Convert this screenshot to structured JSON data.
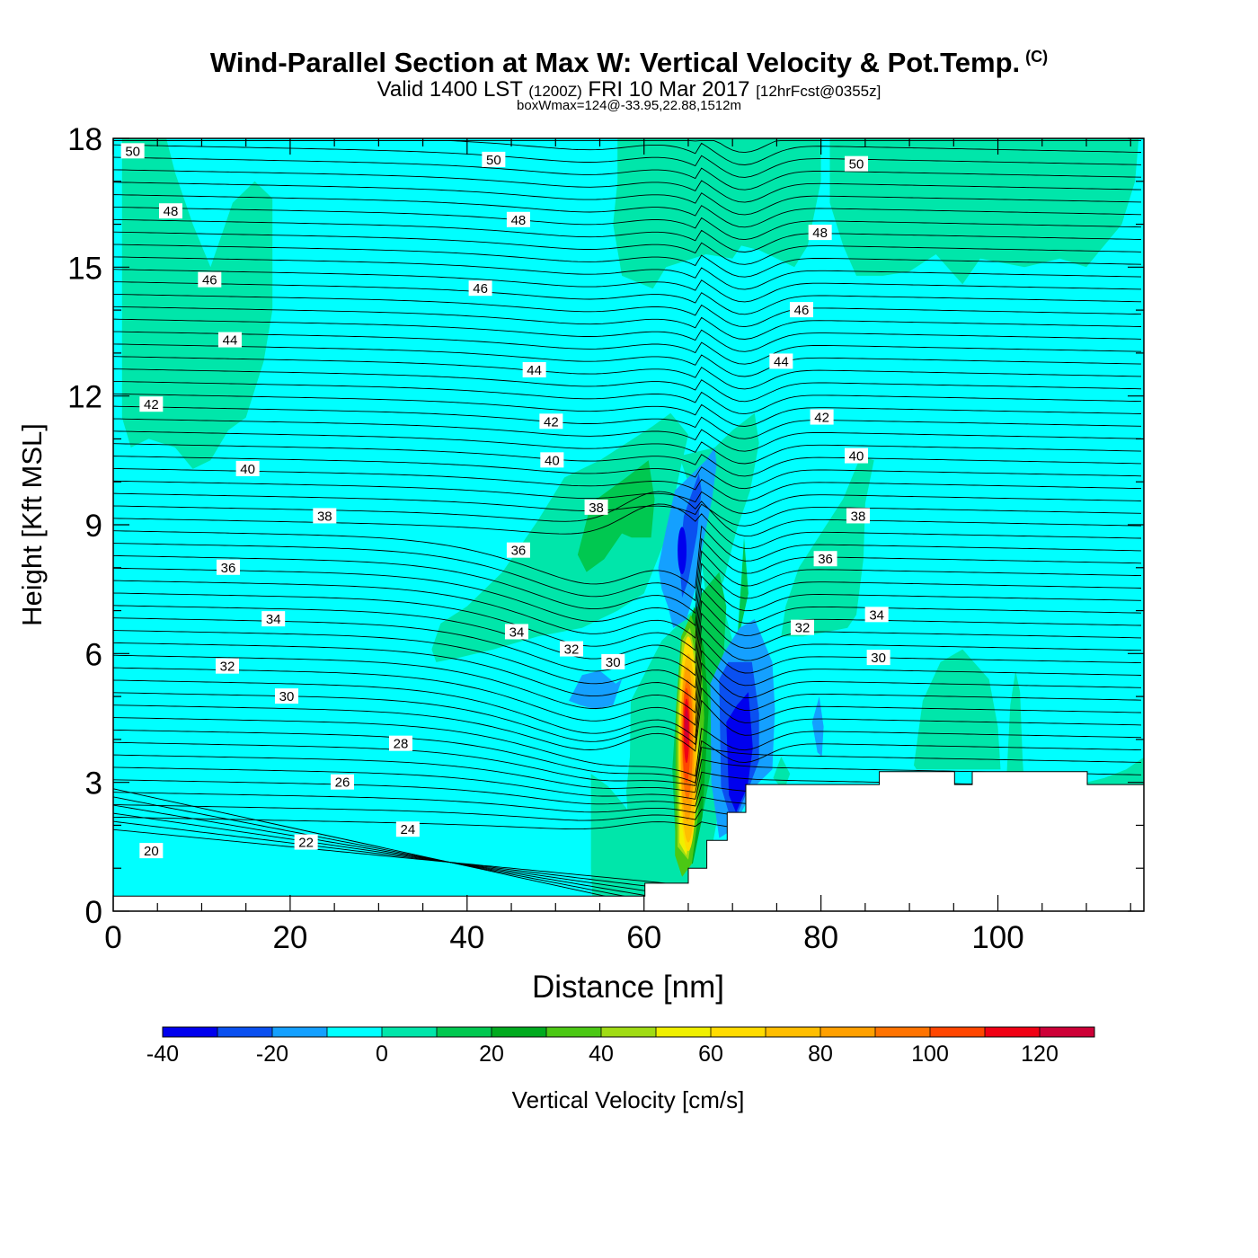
{
  "header": {
    "title": "Wind-Parallel Section at Max W: Vertical Velocity & Pot.Temp.",
    "copyright": "(C)",
    "subtitle_valid": "Valid 1400 LST",
    "subtitle_utc": "(1200Z)",
    "subtitle_date": "FRI 10 Mar 2017",
    "subtitle_fcst": "[12hrFcst@0355z]",
    "boxwmax": "boxWmax=124@-33.95,22.88,1512m"
  },
  "chart_data": {
    "type": "heatmap",
    "title": "Wind-Parallel Section at Max W: Vertical Velocity & Pot.Temp.",
    "xlabel": "Distance [nm]",
    "ylabel": "Height [Kft MSL]",
    "xlim": [
      0,
      116.5
    ],
    "ylim": [
      0,
      18
    ],
    "x_ticks": [
      0,
      20,
      40,
      60,
      80,
      100
    ],
    "y_ticks": [
      0,
      3,
      6,
      9,
      12,
      15,
      18
    ],
    "colorbar": {
      "label": "Vertical Velocity [cm/s]",
      "levels": [
        -40,
        -30,
        -20,
        -10,
        0,
        10,
        20,
        30,
        40,
        50,
        60,
        70,
        80,
        90,
        100,
        110,
        120,
        130
      ],
      "tick_labels": [
        "-40",
        "-20",
        "0",
        "20",
        "40",
        "60",
        "80",
        "100",
        "120"
      ],
      "colors": [
        "#0000ee",
        "#0a50f0",
        "#14a0ff",
        "#00ffff",
        "#00e6aa",
        "#00c850",
        "#00aa1e",
        "#4bc814",
        "#a0dc14",
        "#f0f000",
        "#ffdc00",
        "#ffbe00",
        "#ffa000",
        "#ff7300",
        "#ff4600",
        "#f00014",
        "#cd0037"
      ]
    },
    "w_features": [
      {
        "type": "updraft_max",
        "x": 65,
        "y": 4.0,
        "value": 124
      },
      {
        "type": "downdraft",
        "x": 64.5,
        "y": 8.4,
        "value": -40
      },
      {
        "type": "downdraft",
        "x": 71.5,
        "y": 3.8,
        "value": -40
      }
    ],
    "theta_contours": {
      "label_values": [
        20,
        22,
        24,
        26,
        28,
        30,
        32,
        34,
        36,
        38,
        40,
        42,
        44,
        46,
        48,
        50
      ],
      "interval": 1,
      "labels": [
        {
          "v": "50",
          "x": 2.2,
          "y": 17.7
        },
        {
          "v": "50",
          "x": 43,
          "y": 17.5
        },
        {
          "v": "50",
          "x": 84,
          "y": 17.4
        },
        {
          "v": "48",
          "x": 6.5,
          "y": 16.3
        },
        {
          "v": "48",
          "x": 45.8,
          "y": 16.1
        },
        {
          "v": "48",
          "x": 79.9,
          "y": 15.8
        },
        {
          "v": "46",
          "x": 10.9,
          "y": 14.7
        },
        {
          "v": "46",
          "x": 41.5,
          "y": 14.5
        },
        {
          "v": "46",
          "x": 77.8,
          "y": 14.0
        },
        {
          "v": "44",
          "x": 13.2,
          "y": 13.3
        },
        {
          "v": "44",
          "x": 47.6,
          "y": 12.6
        },
        {
          "v": "44",
          "x": 75.5,
          "y": 12.8
        },
        {
          "v": "42",
          "x": 4.3,
          "y": 11.8
        },
        {
          "v": "42",
          "x": 49.5,
          "y": 11.4
        },
        {
          "v": "42",
          "x": 80.1,
          "y": 11.5
        },
        {
          "v": "40",
          "x": 15.2,
          "y": 10.3
        },
        {
          "v": "40",
          "x": 49.6,
          "y": 10.5
        },
        {
          "v": "40",
          "x": 84.0,
          "y": 10.6
        },
        {
          "v": "38",
          "x": 23.9,
          "y": 9.2
        },
        {
          "v": "38",
          "x": 54.6,
          "y": 9.4
        },
        {
          "v": "38",
          "x": 84.2,
          "y": 9.2
        },
        {
          "v": "36",
          "x": 13.0,
          "y": 8.0
        },
        {
          "v": "36",
          "x": 45.8,
          "y": 8.4
        },
        {
          "v": "36",
          "x": 80.5,
          "y": 8.2
        },
        {
          "v": "34",
          "x": 18.1,
          "y": 6.8
        },
        {
          "v": "34",
          "x": 45.6,
          "y": 6.5
        },
        {
          "v": "34",
          "x": 86.3,
          "y": 6.9
        },
        {
          "v": "32",
          "x": 12.9,
          "y": 5.7
        },
        {
          "v": "32",
          "x": 51.8,
          "y": 6.1
        },
        {
          "v": "32",
          "x": 77.9,
          "y": 6.6
        },
        {
          "v": "30",
          "x": 19.6,
          "y": 5.0
        },
        {
          "v": "30",
          "x": 56.5,
          "y": 5.8
        },
        {
          "v": "30",
          "x": 86.5,
          "y": 5.9
        },
        {
          "v": "28",
          "x": 32.5,
          "y": 3.9
        },
        {
          "v": "26",
          "x": 25.9,
          "y": 3.0
        },
        {
          "v": "24",
          "x": 33.3,
          "y": 1.9
        },
        {
          "v": "22",
          "x": 21.8,
          "y": 1.6
        },
        {
          "v": "20",
          "x": 4.3,
          "y": 1.4
        }
      ]
    },
    "terrain_profile": [
      [
        0,
        0.35
      ],
      [
        60,
        0.35
      ],
      [
        60.1,
        0.65
      ],
      [
        64.9,
        0.65
      ],
      [
        65,
        1.0
      ],
      [
        67,
        1.0
      ],
      [
        67.1,
        1.65
      ],
      [
        69.3,
        1.65
      ],
      [
        69.4,
        2.3
      ],
      [
        71.4,
        2.3
      ],
      [
        71.5,
        2.95
      ],
      [
        86.5,
        2.95
      ],
      [
        86.6,
        3.25
      ],
      [
        95,
        3.25
      ],
      [
        95.1,
        2.95
      ],
      [
        97,
        2.95
      ],
      [
        97.1,
        3.25
      ],
      [
        110,
        3.25
      ],
      [
        110.1,
        2.95
      ],
      [
        116.5,
        2.95
      ]
    ]
  }
}
